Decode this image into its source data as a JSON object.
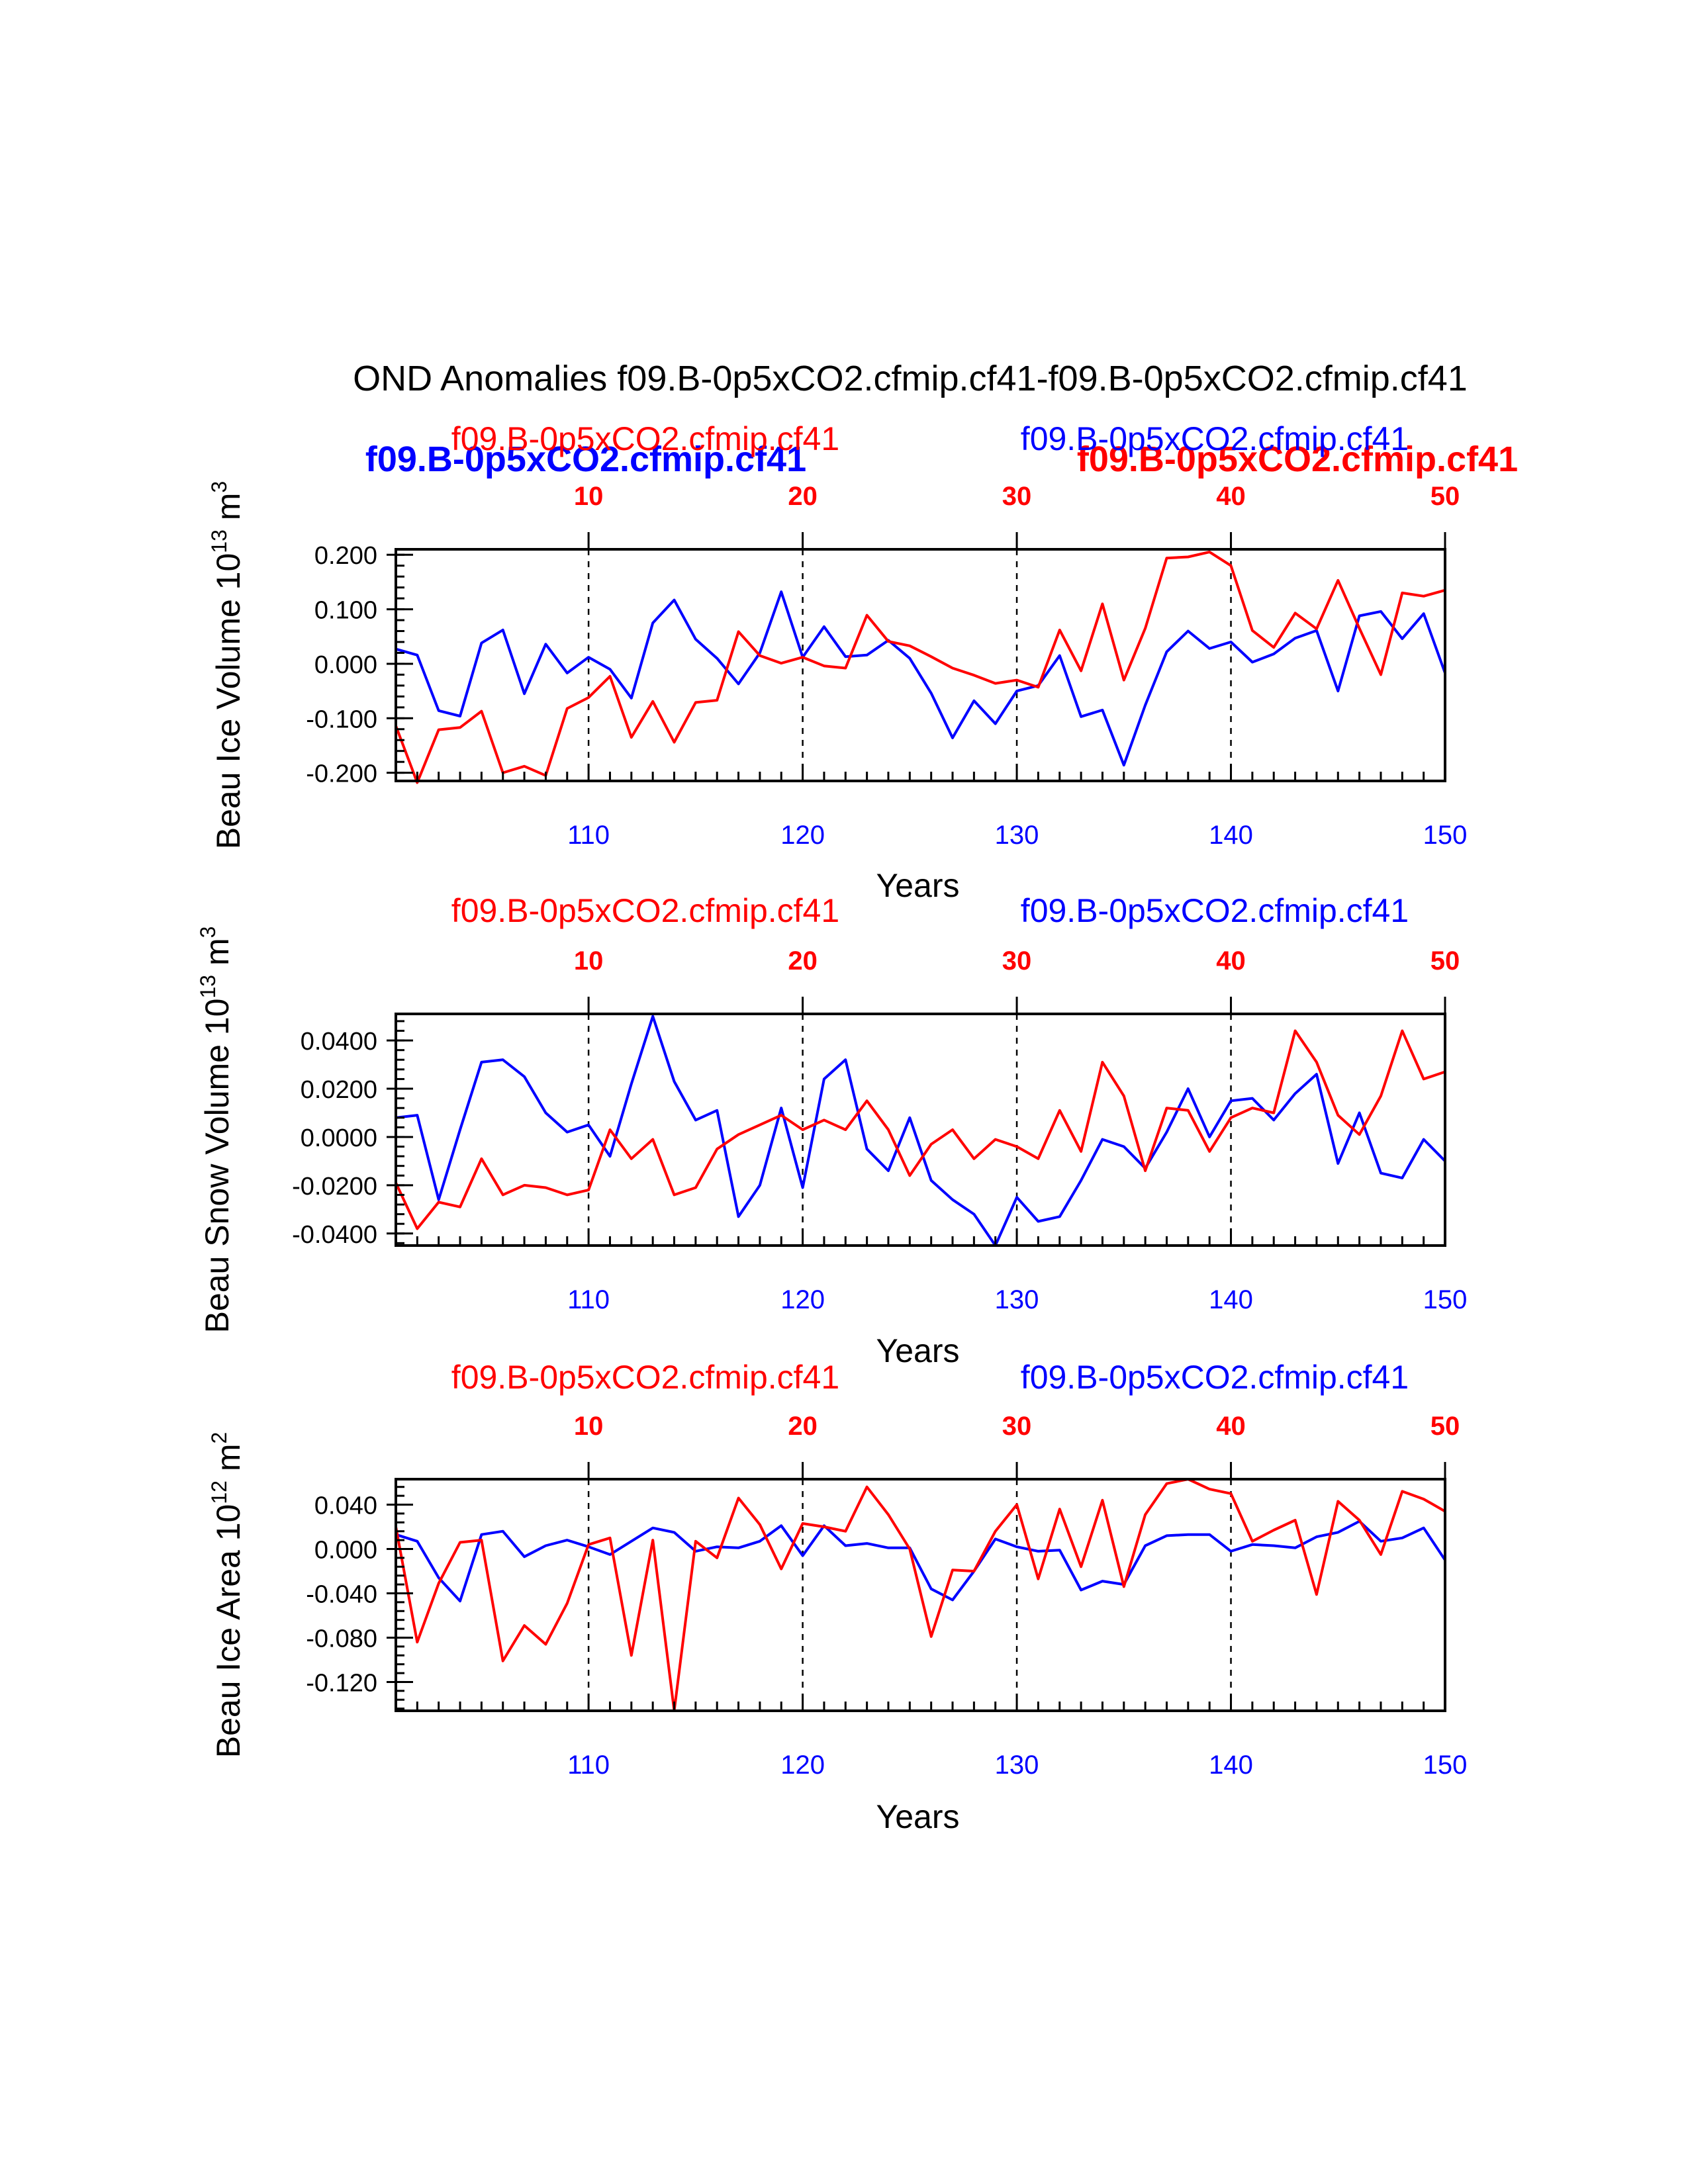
{
  "figure": {
    "title": "OND Anomalies f09.B-0p5xCO2.cfmip.cf41-f09.B-0p5xCO2.cfmip.cf41",
    "legend_bold_left": "f09.B-0p5xCO2.cfmip.cf41",
    "legend_bold_right": "f09.B-0p5xCO2.cfmip.cf41"
  },
  "colors": {
    "red_series": "#ff0000",
    "blue_series": "#0000ff",
    "axis": "#000000"
  },
  "chart_data": [
    {
      "type": "line",
      "title": "",
      "xlabel": "Years",
      "ylabel": "Beau Ice Volume 10",
      "ylabel_exp": "13",
      "ylabel_unit": " m",
      "ylabel_unit_exp": "3",
      "top_left_label": "f09.B-0p5xCO2.cfmip.cf41",
      "top_right_label": "f09.B-0p5xCO2.cfmip.cf41",
      "xlim": [
        101,
        150
      ],
      "ylim": [
        -0.215,
        0.21
      ],
      "bottom_ticks": [
        110,
        120,
        130,
        140,
        150
      ],
      "top_ticks": [
        10,
        20,
        30,
        40,
        50
      ],
      "yticks": [
        -0.2,
        -0.1,
        0.0,
        0.1,
        0.2
      ],
      "ytick_labels": [
        "-0.200",
        "-0.100",
        "0.000",
        "0.100",
        "0.200"
      ],
      "ytick_minor_step": 0.02,
      "dashed_x": [
        110,
        120,
        130,
        140
      ],
      "x": [
        101,
        102,
        103,
        104,
        105,
        106,
        107,
        108,
        109,
        110,
        111,
        112,
        113,
        114,
        115,
        116,
        117,
        118,
        119,
        120,
        121,
        122,
        123,
        124,
        125,
        126,
        127,
        128,
        129,
        130,
        131,
        132,
        133,
        134,
        135,
        136,
        137,
        138,
        139,
        140,
        141,
        142,
        143,
        144,
        145,
        146,
        147,
        148,
        149,
        150
      ],
      "series": [
        {
          "name": "f09.B-0p5xCO2.cfmip.cf41",
          "color": "#0000ff",
          "values": [
            0.027,
            0.016,
            -0.086,
            -0.096,
            0.038,
            0.062,
            -0.055,
            0.036,
            -0.017,
            0.012,
            -0.01,
            -0.063,
            0.075,
            0.117,
            0.045,
            0.01,
            -0.037,
            0.02,
            0.132,
            0.012,
            0.068,
            0.013,
            0.016,
            0.043,
            0.01,
            -0.054,
            -0.136,
            -0.068,
            -0.11,
            -0.05,
            -0.04,
            0.015,
            -0.097,
            -0.085,
            -0.186,
            -0.076,
            0.022,
            0.06,
            0.028,
            0.04,
            0.003,
            0.018,
            0.047,
            0.061,
            -0.05,
            0.088,
            0.096,
            0.046,
            0.092,
            -0.017
          ]
        },
        {
          "name": "f09.B-0p5xCO2.cfmip.cf41",
          "color": "#ff0000",
          "values": [
            -0.114,
            -0.218,
            -0.121,
            -0.117,
            -0.087,
            -0.2,
            -0.188,
            -0.205,
            -0.082,
            -0.062,
            -0.023,
            -0.135,
            -0.069,
            -0.144,
            -0.071,
            -0.067,
            0.059,
            0.015,
            0.001,
            0.012,
            -0.004,
            -0.008,
            0.089,
            0.041,
            0.033,
            0.013,
            -0.008,
            -0.021,
            -0.036,
            -0.03,
            -0.043,
            0.062,
            -0.013,
            0.11,
            -0.03,
            0.065,
            0.194,
            0.196,
            0.205,
            0.18,
            0.061,
            0.03,
            0.093,
            0.064,
            0.153,
            0.065,
            -0.02,
            0.13,
            0.124,
            0.135
          ]
        }
      ]
    },
    {
      "type": "line",
      "title": "",
      "xlabel": "Years",
      "ylabel": "Beau Snow Volume 10",
      "ylabel_exp": "13",
      "ylabel_unit": " m",
      "ylabel_unit_exp": "3",
      "top_left_label": "f09.B-0p5xCO2.cfmip.cf41",
      "top_right_label": "f09.B-0p5xCO2.cfmip.cf41",
      "xlim": [
        101,
        150
      ],
      "ylim": [
        -0.045,
        0.051
      ],
      "bottom_ticks": [
        110,
        120,
        130,
        140,
        150
      ],
      "top_ticks": [
        10,
        20,
        30,
        40,
        50
      ],
      "yticks": [
        -0.04,
        -0.02,
        0.0,
        0.02,
        0.04
      ],
      "ytick_labels": [
        "-0.0400",
        "-0.0200",
        "0.0000",
        "0.0200",
        "0.0400"
      ],
      "ytick_minor_step": 0.004,
      "dashed_x": [
        110,
        120,
        130,
        140
      ],
      "x": [
        101,
        102,
        103,
        104,
        105,
        106,
        107,
        108,
        109,
        110,
        111,
        112,
        113,
        114,
        115,
        116,
        117,
        118,
        119,
        120,
        121,
        122,
        123,
        124,
        125,
        126,
        127,
        128,
        129,
        130,
        131,
        132,
        133,
        134,
        135,
        136,
        137,
        138,
        139,
        140,
        141,
        142,
        143,
        144,
        145,
        146,
        147,
        148,
        149,
        150
      ],
      "series": [
        {
          "name": "f09.B-0p5xCO2.cfmip.cf41",
          "color": "#0000ff",
          "values": [
            0.008,
            0.009,
            -0.026,
            0.003,
            0.031,
            0.032,
            0.025,
            0.01,
            0.002,
            0.005,
            -0.008,
            0.022,
            0.05,
            0.023,
            0.007,
            0.011,
            -0.033,
            -0.02,
            0.012,
            -0.021,
            0.024,
            0.032,
            -0.005,
            -0.014,
            0.008,
            -0.018,
            -0.026,
            -0.032,
            -0.045,
            -0.025,
            -0.035,
            -0.033,
            -0.018,
            -0.001,
            -0.004,
            -0.013,
            0.002,
            0.02,
            0.0,
            0.015,
            0.016,
            0.007,
            0.018,
            0.026,
            -0.011,
            0.01,
            -0.015,
            -0.017,
            -0.001,
            -0.01
          ]
        },
        {
          "name": "f09.B-0p5xCO2.cfmip.cf41",
          "color": "#ff0000",
          "values": [
            -0.019,
            -0.038,
            -0.027,
            -0.029,
            -0.009,
            -0.024,
            -0.02,
            -0.021,
            -0.024,
            -0.022,
            0.003,
            -0.009,
            -0.001,
            -0.024,
            -0.021,
            -0.005,
            0.001,
            0.005,
            0.009,
            0.003,
            0.007,
            0.003,
            0.015,
            0.003,
            -0.016,
            -0.003,
            0.003,
            -0.009,
            -0.001,
            -0.004,
            -0.009,
            0.011,
            -0.006,
            0.031,
            0.017,
            -0.014,
            0.012,
            0.011,
            -0.006,
            0.008,
            0.012,
            0.01,
            0.044,
            0.031,
            0.009,
            0.001,
            0.017,
            0.044,
            0.024,
            0.027
          ]
        }
      ]
    },
    {
      "type": "line",
      "title": "",
      "xlabel": "Years",
      "ylabel": "Beau Ice Area 10",
      "ylabel_exp": "12",
      "ylabel_unit": " m",
      "ylabel_unit_exp": "2",
      "top_left_label": "f09.B-0p5xCO2.cfmip.cf41",
      "top_right_label": "f09.B-0p5xCO2.cfmip.cf41",
      "xlim": [
        101,
        150
      ],
      "ylim": [
        -0.146,
        0.063
      ],
      "bottom_ticks": [
        110,
        120,
        130,
        140,
        150
      ],
      "top_ticks": [
        10,
        20,
        30,
        40,
        50
      ],
      "yticks": [
        -0.12,
        -0.08,
        -0.04,
        0.0,
        0.04
      ],
      "ytick_labels": [
        "-0.120",
        "-0.080",
        "-0.040",
        "0.000",
        "0.040"
      ],
      "ytick_minor_step": 0.008,
      "dashed_x": [
        110,
        120,
        130,
        140
      ],
      "x": [
        101,
        102,
        103,
        104,
        105,
        106,
        107,
        108,
        109,
        110,
        111,
        112,
        113,
        114,
        115,
        116,
        117,
        118,
        119,
        120,
        121,
        122,
        123,
        124,
        125,
        126,
        127,
        128,
        129,
        130,
        131,
        132,
        133,
        134,
        135,
        136,
        137,
        138,
        139,
        140,
        141,
        142,
        143,
        144,
        145,
        146,
        147,
        148,
        149,
        150
      ],
      "series": [
        {
          "name": "f09.B-0p5xCO2.cfmip.cf41",
          "color": "#0000ff",
          "values": [
            0.013,
            0.007,
            -0.026,
            -0.047,
            0.013,
            0.016,
            -0.007,
            0.003,
            0.008,
            0.002,
            -0.005,
            0.007,
            0.019,
            0.015,
            -0.002,
            0.002,
            0.001,
            0.007,
            0.021,
            -0.006,
            0.021,
            0.003,
            0.005,
            0.001,
            0.001,
            -0.036,
            -0.046,
            -0.02,
            0.009,
            0.002,
            -0.002,
            -0.001,
            -0.037,
            -0.029,
            -0.032,
            0.003,
            0.012,
            0.013,
            0.013,
            -0.002,
            0.004,
            0.003,
            0.001,
            0.011,
            0.015,
            0.025,
            0.007,
            0.01,
            0.019,
            -0.01
          ]
        },
        {
          "name": "f09.B-0p5xCO2.cfmip.cf41",
          "color": "#ff0000",
          "values": [
            0.02,
            -0.084,
            -0.031,
            0.006,
            0.008,
            -0.101,
            -0.069,
            -0.086,
            -0.049,
            0.004,
            0.01,
            -0.096,
            0.008,
            -0.146,
            0.007,
            -0.008,
            0.046,
            0.022,
            -0.018,
            0.023,
            0.02,
            0.016,
            0.056,
            0.031,
            0.0,
            -0.079,
            -0.019,
            -0.02,
            0.016,
            0.04,
            -0.027,
            0.036,
            -0.016,
            0.044,
            -0.034,
            0.031,
            0.059,
            0.063,
            0.054,
            0.05,
            0.007,
            0.017,
            0.026,
            -0.041,
            0.043,
            0.026,
            -0.005,
            0.052,
            0.045,
            0.034
          ]
        }
      ]
    }
  ]
}
